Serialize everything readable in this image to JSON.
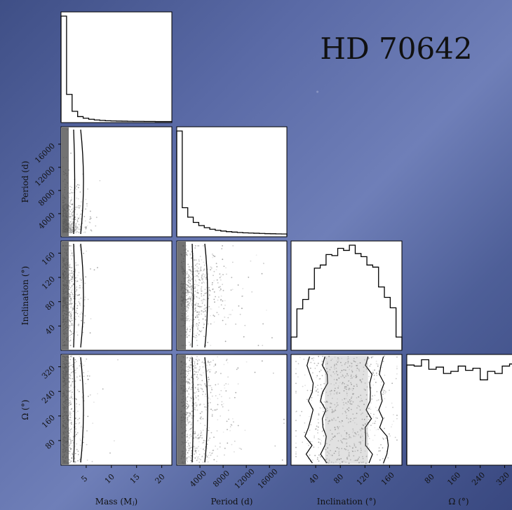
{
  "figure": {
    "title": "HD 70642",
    "background": "#5a6aa6",
    "panel_bg": "#ffffff"
  },
  "chart_data": {
    "type": "corner",
    "title": "HD 70642",
    "parameters": [
      {
        "key": "mass",
        "label": "Mass (Mⱼ)",
        "range": [
          0,
          22
        ],
        "ticks": [
          5,
          10,
          15,
          20
        ]
      },
      {
        "key": "period",
        "label": "Period (d)",
        "range": [
          0,
          19000
        ],
        "ticks": [
          4000,
          8000,
          12000,
          16000
        ]
      },
      {
        "key": "inclination",
        "label": "Inclination (°)",
        "range": [
          0,
          180
        ],
        "ticks": [
          40,
          80,
          120,
          160
        ]
      },
      {
        "key": "omega",
        "label": "Ω (°)",
        "range": [
          0,
          360
        ],
        "ticks": [
          80,
          160,
          240,
          320
        ]
      }
    ],
    "histograms": {
      "mass": [
        1.0,
        0.26,
        0.1,
        0.05,
        0.035,
        0.025,
        0.018,
        0.014,
        0.011,
        0.009,
        0.008,
        0.007,
        0.006,
        0.005,
        0.005,
        0.004,
        0.004,
        0.003,
        0.003,
        0.003
      ],
      "period": [
        1.0,
        0.27,
        0.18,
        0.13,
        0.1,
        0.08,
        0.065,
        0.055,
        0.048,
        0.042,
        0.038,
        0.034,
        0.031,
        0.029,
        0.027,
        0.025,
        0.023,
        0.022,
        0.021,
        0.02
      ],
      "inclination": [
        0.12,
        0.39,
        0.48,
        0.58,
        0.78,
        0.81,
        0.91,
        0.9,
        0.97,
        0.95,
        1.0,
        0.92,
        0.89,
        0.81,
        0.79,
        0.6,
        0.5,
        0.4,
        0.12
      ],
      "omega": [
        0.94,
        0.93,
        0.99,
        0.9,
        0.92,
        0.86,
        0.88,
        0.93,
        0.89,
        0.91,
        0.8,
        0.88,
        0.86,
        0.93,
        0.95
      ]
    },
    "grid": false,
    "legend": "none"
  }
}
